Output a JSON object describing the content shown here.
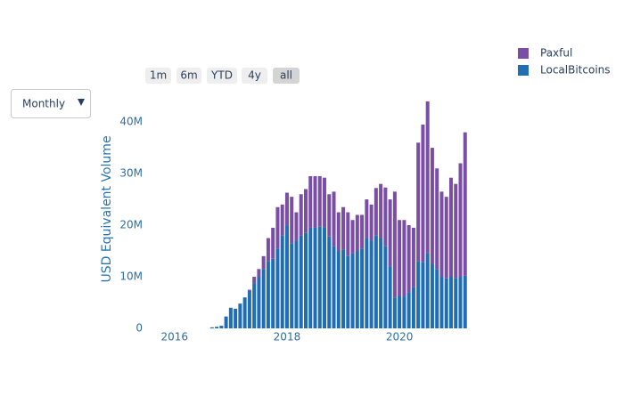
{
  "controls": {
    "dropdown": "Monthly",
    "range_buttons": [
      "1m",
      "6m",
      "YTD",
      "4y",
      "all"
    ],
    "active_button": 4
  },
  "chart_data": {
    "type": "bar",
    "stacked": true,
    "y_label": "USD Equivalent Volume",
    "x": [
      "2016-09",
      "2016-10",
      "2016-11",
      "2016-12",
      "2017-01",
      "2017-02",
      "2017-03",
      "2017-04",
      "2017-05",
      "2017-06",
      "2017-07",
      "2017-08",
      "2017-09",
      "2017-10",
      "2017-11",
      "2017-12",
      "2018-01",
      "2018-02",
      "2018-03",
      "2018-04",
      "2018-05",
      "2018-06",
      "2018-07",
      "2018-08",
      "2018-09",
      "2018-10",
      "2018-11",
      "2018-12",
      "2019-01",
      "2019-02",
      "2019-03",
      "2019-04",
      "2019-05",
      "2019-06",
      "2019-07",
      "2019-08",
      "2019-09",
      "2019-10",
      "2019-11",
      "2019-12",
      "2020-01",
      "2020-02",
      "2020-03",
      "2020-04",
      "2020-05",
      "2020-06",
      "2020-07",
      "2020-08",
      "2020-09",
      "2020-10",
      "2020-11",
      "2020-12",
      "2021-01",
      "2021-02",
      "2021-03"
    ],
    "series": [
      {
        "name": "Paxful",
        "color": "#7b4ea6",
        "values": [
          0,
          0,
          0,
          0,
          0,
          0,
          0,
          0,
          200000,
          1300000,
          1500000,
          2500000,
          4500000,
          6000000,
          8000000,
          6000000,
          6300000,
          9000000,
          5500000,
          8000000,
          8500000,
          10000000,
          10000000,
          9700000,
          9700000,
          8200000,
          10500000,
          7500000,
          8200000,
          8500000,
          6500000,
          7000000,
          6500000,
          7500000,
          7000000,
          9200000,
          10500000,
          11300000,
          13000000,
          20500000,
          14700000,
          14800000,
          13000000,
          11500000,
          23000000,
          26700000,
          29500000,
          22500000,
          19500000,
          16500000,
          15800000,
          19200000,
          18200000,
          22000000,
          27800000
        ]
      },
      {
        "name": "LocalBitcoins",
        "color": "#1f6db5",
        "values": [
          200000,
          300000,
          500000,
          2300000,
          4000000,
          3800000,
          4800000,
          6000000,
          7300000,
          8700000,
          10000000,
          11500000,
          13000000,
          13500000,
          15500000,
          18000000,
          20000000,
          16500000,
          17000000,
          18000000,
          18500000,
          19500000,
          19500000,
          19800000,
          19500000,
          17800000,
          16000000,
          15000000,
          15300000,
          14000000,
          14500000,
          15000000,
          15500000,
          17500000,
          17000000,
          18000000,
          17500000,
          16000000,
          12000000,
          6000000,
          6300000,
          6200000,
          7000000,
          8000000,
          13000000,
          12800000,
          14500000,
          12500000,
          11500000,
          10000000,
          9700000,
          10000000,
          9800000,
          10000000,
          10200000
        ]
      }
    ],
    "xlim": [
      "2015-10",
      "2021-04"
    ],
    "xticks": [
      {
        "value": "2016-01",
        "label": "2016"
      },
      {
        "value": "2018-01",
        "label": "2018"
      },
      {
        "value": "2020-01",
        "label": "2020"
      }
    ],
    "ylim": [
      0,
      46400000
    ],
    "yticks": [
      0,
      {
        "value": 10000000,
        "label": "10M"
      },
      {
        "value": 20000000,
        "label": "20M"
      },
      {
        "value": 30000000,
        "label": "30M"
      },
      {
        "value": 40000000,
        "label": "40M"
      }
    ],
    "legend": "top-right"
  }
}
